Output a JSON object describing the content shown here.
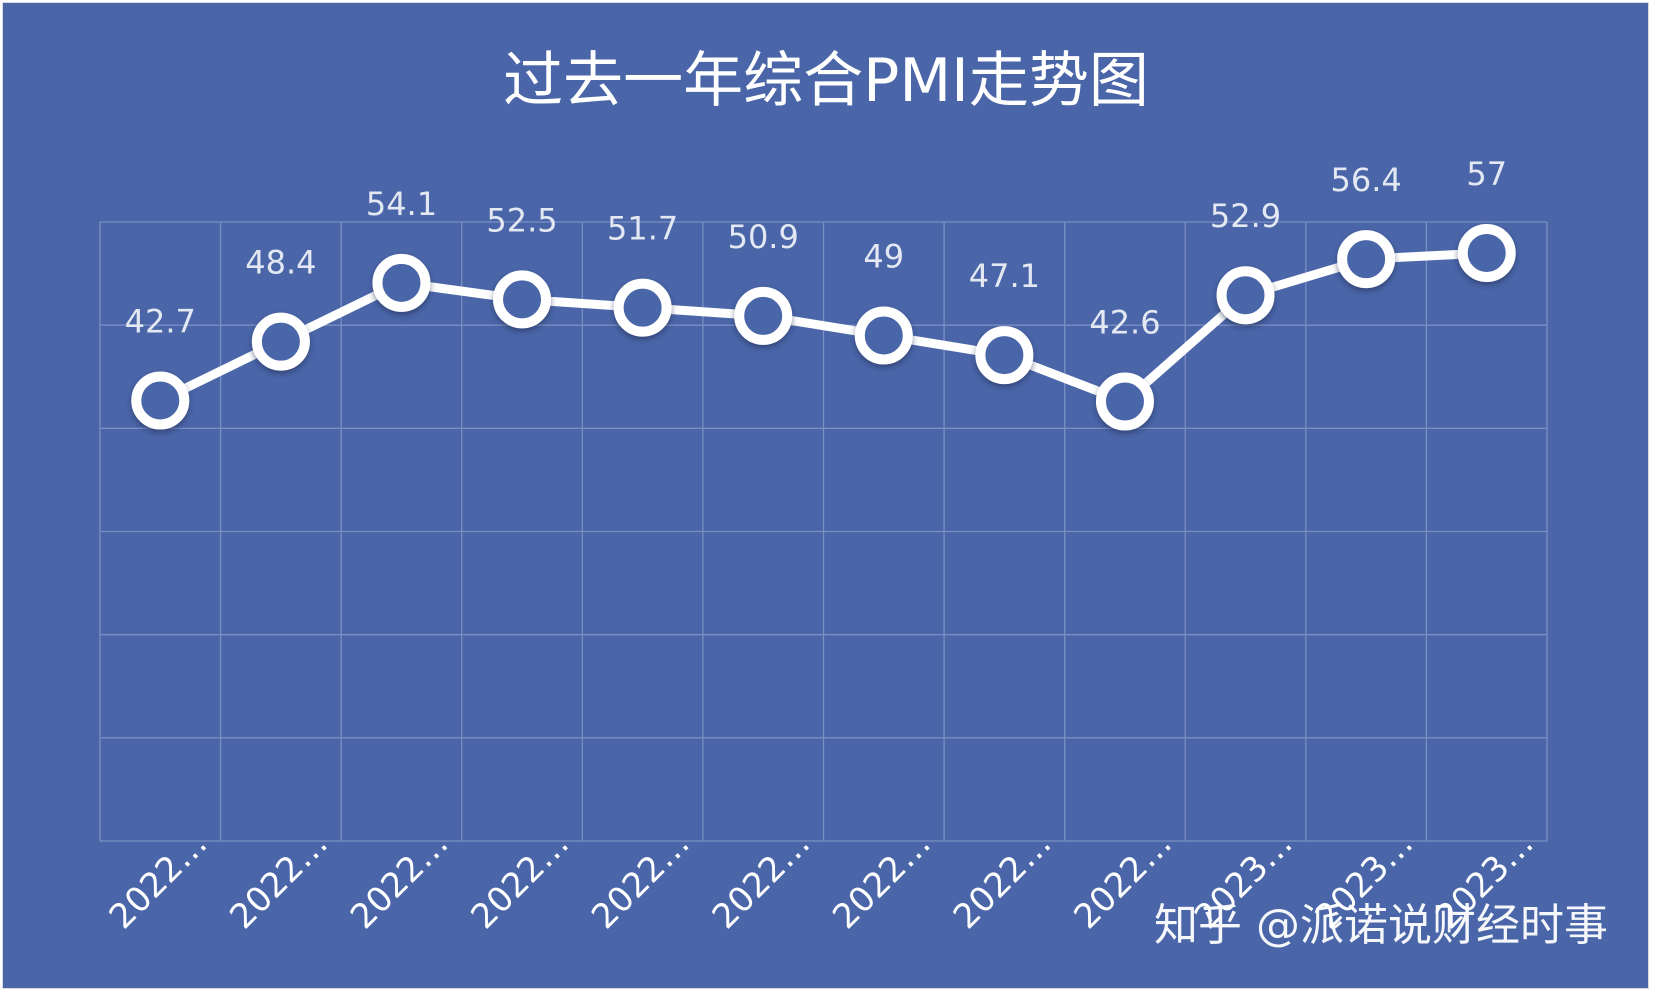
{
  "chart_data": {
    "type": "line",
    "title": "过去一年综合PMI走势图",
    "categories": [
      "2022…",
      "2022…",
      "2022…",
      "2022…",
      "2022…",
      "2022…",
      "2022…",
      "2022…",
      "2022…",
      "2023…",
      "2023…",
      "2023…"
    ],
    "values": [
      42.7,
      48.4,
      54.1,
      52.5,
      51.7,
      50.9,
      49,
      47.1,
      42.6,
      52.9,
      56.4,
      57
    ],
    "data_labels": [
      "42.7",
      "48.4",
      "54.1",
      "52.5",
      "51.7",
      "50.9",
      "49",
      "47.1",
      "42.6",
      "52.9",
      "56.4",
      "57"
    ],
    "ylim": [
      0,
      60
    ],
    "grid": true,
    "y_axis_labels_visible": false,
    "legend": "none",
    "colors": {
      "background": "#4a66a8",
      "line": "#ffffff",
      "marker_fill": "#4a66a8",
      "gridline": "#7a8fc2"
    }
  },
  "watermark": "知乎 @派诺说财经时事"
}
